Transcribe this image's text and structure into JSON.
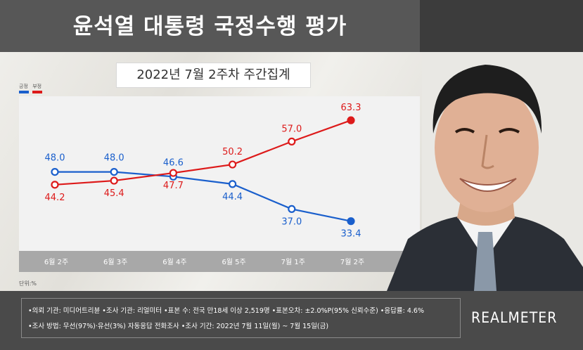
{
  "header": {
    "title": "윤석열 대통령 국정수행 평가"
  },
  "subtitle": "2022년 7월 2주차 주간집계",
  "legend": {
    "positive": "긍정",
    "negative": "부정"
  },
  "unit_label": "단위:%",
  "chart_data": {
    "type": "line",
    "categories": [
      "6월 2주",
      "6월 3주",
      "6월 4주",
      "6월 5주",
      "7월 1주",
      "7월 2주"
    ],
    "series": [
      {
        "name": "긍정",
        "color": "#1a5fcc",
        "values": [
          48.0,
          48.0,
          46.6,
          44.4,
          37.0,
          33.4
        ]
      },
      {
        "name": "부정",
        "color": "#dd1a1a",
        "values": [
          44.2,
          45.4,
          47.7,
          50.2,
          57.0,
          63.3
        ]
      }
    ],
    "value_labels": {
      "positive": [
        "48.0",
        "48.0",
        "46.6",
        "44.4",
        "37.0",
        "33.4"
      ],
      "negative": [
        "44.2",
        "45.4",
        "47.7",
        "50.2",
        "57.0",
        "63.3"
      ]
    },
    "ylim": [
      25,
      70
    ],
    "grid": false,
    "legend_position": "top-left"
  },
  "footer": {
    "note1": "•의뢰 기관: 미디어트리뷴 •조사 기관: 리얼미터 •표본 수: 전국 만18세 이상 2,519명 •표본오차: ±2.0%P(95% 신뢰수준) •응답률: 4.6%",
    "note2": "•조사 방법: 무선(97%)·유선(3%) 자동응답 전화조사 •조사 기간: 2022년 7월 11일(월) ~ 7월 15일(금)",
    "brand": "REALMETER"
  }
}
